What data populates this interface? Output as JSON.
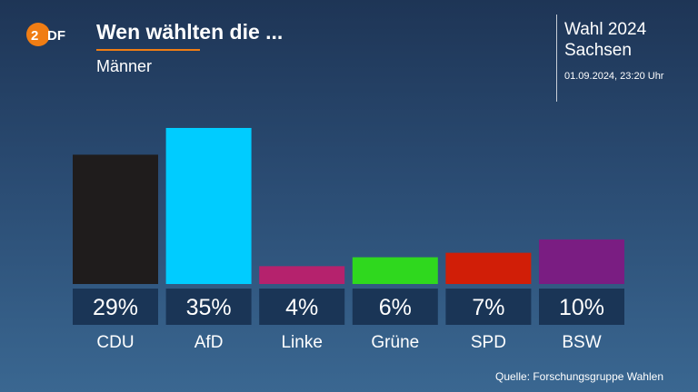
{
  "header": {
    "logo_text": "ZDF",
    "title": "Wen wählten die ...",
    "subtitle": "Männer",
    "election": "Wahl 2024",
    "region": "Sachsen",
    "datetime": "01.09.2024, 23:20 Uhr"
  },
  "colors": {
    "accent": "#f07d14",
    "background_top": "#1e3556",
    "background_bottom": "#3a6791",
    "label_box": "#1a3556"
  },
  "chart_data": {
    "type": "bar",
    "title": "Wen wählten die ...",
    "subtitle": "Männer",
    "categories": [
      "CDU",
      "AfD",
      "Linke",
      "Grüne",
      "SPD",
      "BSW"
    ],
    "values": [
      29,
      35,
      4,
      6,
      7,
      10
    ],
    "value_labels": [
      "29%",
      "35%",
      "4%",
      "6%",
      "7%",
      "10%"
    ],
    "colors": [
      "#1f1c1c",
      "#00ccff",
      "#b5226d",
      "#2fd81e",
      "#d11e07",
      "#7a1d82"
    ],
    "ylim": [
      0,
      35
    ],
    "grid": false
  },
  "footer": {
    "source": "Quelle: Forschungsgruppe Wahlen"
  }
}
